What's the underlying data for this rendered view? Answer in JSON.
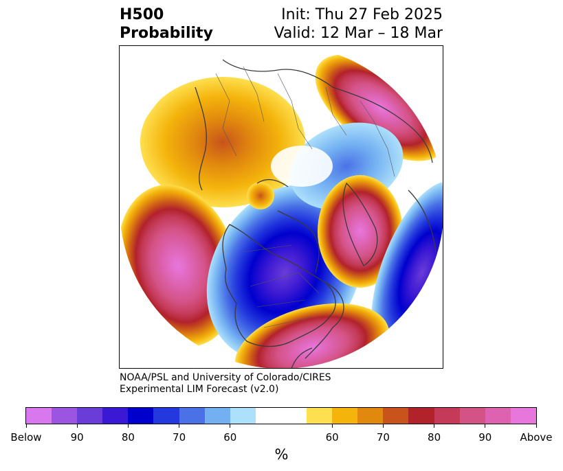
{
  "header": {
    "title_line1": "H500",
    "title_line2": "Probability",
    "init_text": "Init: Thu 27 Feb 2025",
    "valid_text": "Valid: 12 Mar – 18 Mar"
  },
  "credit": {
    "line1": "NOAA/PSL and University of Colorado/CIRES",
    "line2": "Experimental LIM Forecast (v2.0)"
  },
  "colorbar": {
    "colors": [
      "#d877ee",
      "#9b55e0",
      "#6a3cd8",
      "#3b18d3",
      "#0000cd",
      "#2339dd",
      "#4a72e6",
      "#73b0f2",
      "#ade0fb",
      "#ffffff",
      "#ffffff",
      "#fedf4f",
      "#f4b40c",
      "#e1880e",
      "#c8531b",
      "#b2222b",
      "#c43a58",
      "#d45386",
      "#dd62b0",
      "#e877dd"
    ],
    "tick_labels": [
      "Below",
      "90",
      "80",
      "70",
      "60",
      "60",
      "70",
      "80",
      "90",
      "Above"
    ],
    "unit": "%"
  }
}
